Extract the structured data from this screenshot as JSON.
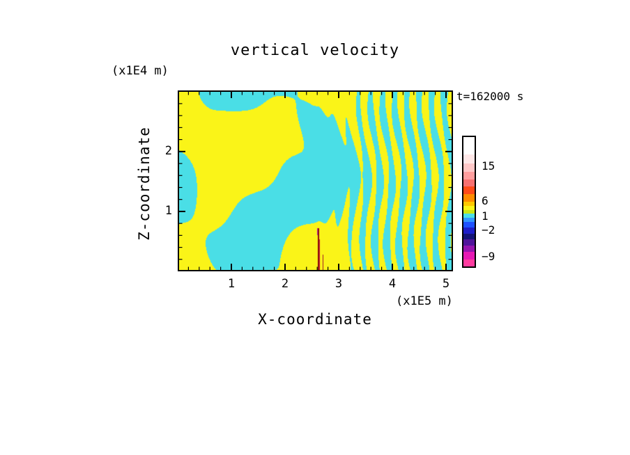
{
  "chart_data": {
    "type": "contour",
    "title": "vertical velocity",
    "xlabel": "X-coordinate",
    "ylabel": "Z-coordinate",
    "x_units": "(x1E5 m)",
    "z_units": "(x1E4 m)",
    "annotation": "t=162000 s",
    "x_range": [
      0,
      5.13
    ],
    "z_range": [
      0,
      3.02
    ],
    "x_ticks": [
      "1",
      "2",
      "3",
      "4",
      "5"
    ],
    "x_tick_values": [
      1,
      2,
      3,
      4,
      5
    ],
    "z_ticks": [
      "1",
      "2"
    ],
    "z_tick_values": [
      1,
      2
    ],
    "grid": false,
    "legend_position": "right",
    "field": {
      "positive_color": "#FAF418",
      "negative_color": "#4ADEE6",
      "threshold": 0.05,
      "description": "Binary filled contour field: yellow = positive vertical velocity, cyan = negative. Large irregular blobs on the left half transition into fine, nearly vertical wave stripes on the right half; a narrow dark-red/magenta filament rises from the bottom boundary near x = 2.6E5 m."
    },
    "colorbar": {
      "labels": [
        {
          "text": "15",
          "offset": 43
        },
        {
          "text": "6",
          "offset": 93
        },
        {
          "text": "1",
          "offset": 115
        },
        {
          "text": "−2",
          "offset": 135
        },
        {
          "text": "−9",
          "offset": 173
        }
      ],
      "segments": [
        {
          "color": "#FFFFFF",
          "h": 26
        },
        {
          "color": "#FFE8E8",
          "h": 13
        },
        {
          "color": "#FFC8C8",
          "h": 12
        },
        {
          "color": "#FF9E9E",
          "h": 11
        },
        {
          "color": "#F87070",
          "h": 11
        },
        {
          "color": "#FF4B19",
          "h": 11
        },
        {
          "color": "#FF8C00",
          "h": 11
        },
        {
          "color": "#FFC800",
          "h": 6
        },
        {
          "color": "#FAF418",
          "h": 6
        },
        {
          "color": "#C8E614",
          "h": 5
        },
        {
          "color": "#4ADEE6",
          "h": 6
        },
        {
          "color": "#3296FF",
          "h": 7
        },
        {
          "color": "#1E50FF",
          "h": 8
        },
        {
          "color": "#1E1EC8",
          "h": 9
        },
        {
          "color": "#141478",
          "h": 8
        },
        {
          "color": "#50149B",
          "h": 9
        },
        {
          "color": "#9614AF",
          "h": 10
        },
        {
          "color": "#E619B4",
          "h": 11
        },
        {
          "color": "#FF3CA0",
          "h": 10
        }
      ]
    }
  }
}
